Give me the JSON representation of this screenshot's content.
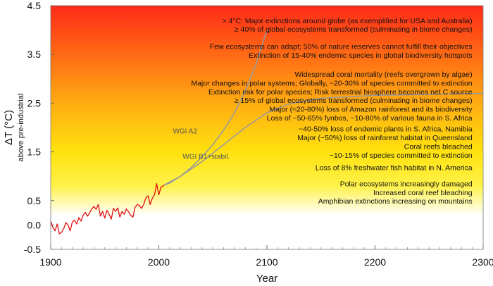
{
  "chart_data": {
    "type": "line",
    "xlabel": "Year",
    "ylabel": "ΔT (°C)",
    "ylabel_sub": "above pre-industrial",
    "xlim": [
      1900,
      2300
    ],
    "ylim": [
      -0.5,
      4.5
    ],
    "x_ticks": [
      1900,
      2000,
      2100,
      2200,
      2300
    ],
    "x_tick_labels": [
      "1900",
      "2000",
      "2100",
      "2200",
      "2300"
    ],
    "y_ticks": [
      -0.5,
      0.0,
      0.5,
      1.5,
      2.5,
      3.5,
      4.5
    ],
    "y_tick_labels": [
      "-0.5",
      "0.0",
      "0.5",
      "1.5",
      "2.5",
      "3.5",
      "4.5"
    ],
    "background_gradient": [
      {
        "y": 4.5,
        "color": "#ff2a1a"
      },
      {
        "y": 3.5,
        "color": "#ff6a14"
      },
      {
        "y": 2.5,
        "color": "#ffac12"
      },
      {
        "y": 1.5,
        "color": "#ffe20e"
      },
      {
        "y": 0.8,
        "color": "#fff24a"
      },
      {
        "y": 0.2,
        "color": "#ffffff"
      }
    ],
    "series": [
      {
        "name": "observed",
        "color": "#e01010",
        "x": [
          1900,
          1902,
          1904,
          1906,
          1908,
          1910,
          1912,
          1914,
          1916,
          1918,
          1920,
          1922,
          1924,
          1926,
          1928,
          1930,
          1932,
          1934,
          1936,
          1938,
          1940,
          1942,
          1944,
          1946,
          1948,
          1950,
          1952,
          1954,
          1956,
          1958,
          1960,
          1962,
          1964,
          1966,
          1968,
          1970,
          1972,
          1974,
          1976,
          1978,
          1980,
          1982,
          1984,
          1986,
          1988,
          1990,
          1992,
          1994,
          1996,
          1998,
          2000,
          2002,
          2004,
          2005
        ],
        "values": [
          0.08,
          -0.05,
          -0.12,
          0.02,
          -0.18,
          -0.15,
          -0.08,
          0.05,
          0.0,
          -0.12,
          0.06,
          0.1,
          0.02,
          0.15,
          0.08,
          0.2,
          0.26,
          0.18,
          0.25,
          0.33,
          0.38,
          0.32,
          0.42,
          0.18,
          0.28,
          0.14,
          0.3,
          0.22,
          0.12,
          0.34,
          0.28,
          0.35,
          0.16,
          0.28,
          0.22,
          0.33,
          0.27,
          0.2,
          0.16,
          0.36,
          0.42,
          0.4,
          0.34,
          0.42,
          0.55,
          0.6,
          0.42,
          0.55,
          0.62,
          0.85,
          0.62,
          0.78,
          0.8,
          0.82
        ]
      },
      {
        "name": "WGI A2",
        "label": "WGI A2",
        "color": "#9a9a9a",
        "x": [
          2005,
          2010,
          2020,
          2030,
          2040,
          2050,
          2060,
          2070,
          2080,
          2090,
          2100
        ],
        "values": [
          0.82,
          0.86,
          1.0,
          1.18,
          1.4,
          1.65,
          1.95,
          2.3,
          2.75,
          3.3,
          4.0
        ]
      },
      {
        "name": "WGI B1+stabil.",
        "label": "WGI B1+stabil.",
        "color": "#9a9a9a",
        "x": [
          2005,
          2020,
          2040,
          2060,
          2080,
          2100,
          2120,
          2150,
          2200,
          2250,
          2300
        ],
        "values": [
          0.82,
          1.0,
          1.3,
          1.65,
          2.0,
          2.3,
          2.48,
          2.6,
          2.66,
          2.68,
          2.7
        ]
      }
    ],
    "annotations": [
      {
        "text": "> 4°C: Major extinctions around globe (as exemplified for USA and Australia)",
        "y": 4.2
      },
      {
        "text": "≥ 40% of global ecosystems transformed (culminating in biome changes)",
        "y": 4.02
      },
      {
        "text": "Few ecosystems can adapt;  50% of nature reserves cannot fulfill their objectives",
        "y": 3.67
      },
      {
        "text": "Extinction of 15-40% endemic species in global biodiversity hotspots",
        "y": 3.49
      },
      {
        "text": "Widespread coral mortality (reefs overgrown by algae)",
        "y": 3.1
      },
      {
        "text": "Major changes in polar systems;  Globally, ~20-30% of species committed to extinction",
        "y": 2.92
      },
      {
        "text": "Extinction risk for polar species;  Risk terrestrial biosphere becomes net C source",
        "y": 2.74
      },
      {
        "text": "≥ 15% of global ecosystems transformed (culminating in biome changes)",
        "y": 2.56
      },
      {
        "text": "Major (≈20-80%) loss of Amazon rainforest and its biodiversity",
        "y": 2.38
      },
      {
        "text": "Loss of ~50-65% fynbos, ~10-80% of various fauna in S. Africa",
        "y": 2.2
      },
      {
        "text": "~40-50% loss of endemic plants in S. Africa, Namibia",
        "y": 1.98
      },
      {
        "text": "Major (~50%) loss of rainforest habitat in Queensland",
        "y": 1.8
      },
      {
        "text": "Coral reefs bleached",
        "y": 1.62
      },
      {
        "text": "~10-15% of species committed to extinction",
        "y": 1.44
      },
      {
        "text": "Loss of 8% freshwater fish habitat in N. America",
        "y": 1.18
      },
      {
        "text": "Polar ecosystems increasingly damaged",
        "y": 0.85
      },
      {
        "text": "Increased coral reef bleaching",
        "y": 0.67
      },
      {
        "text": "Amphibian extinctions increasing on mountains",
        "y": 0.5
      }
    ]
  }
}
